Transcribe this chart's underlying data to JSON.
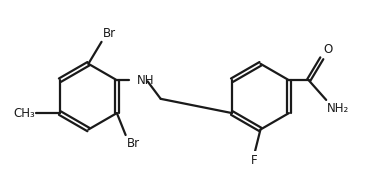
{
  "background_color": "#ffffff",
  "line_color": "#1a1a1a",
  "line_width": 1.6,
  "font_size": 8.5,
  "fig_width": 3.85,
  "fig_height": 1.9,
  "dpi": 100,
  "labels": {
    "Br_top": "Br",
    "Br_bottom": "Br",
    "CH3": "CH₃",
    "NH": "NH",
    "F": "F",
    "O": "O",
    "NH2": "NH₂"
  }
}
